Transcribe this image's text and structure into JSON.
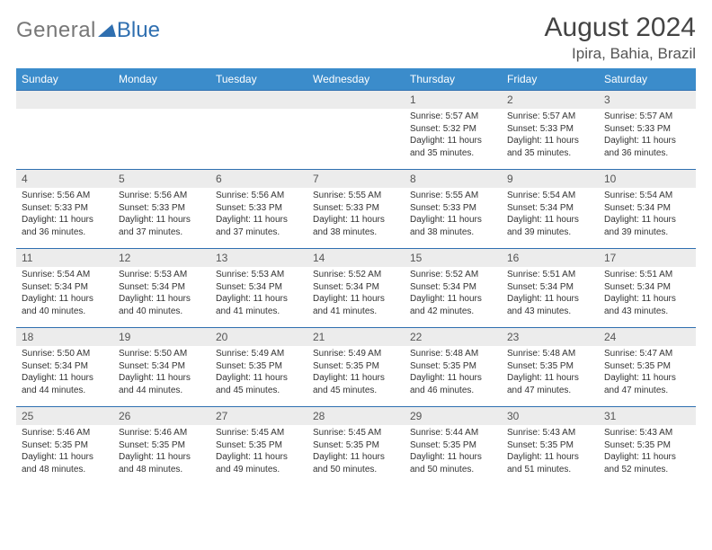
{
  "logo": {
    "word1": "General",
    "word2": "Blue"
  },
  "header": {
    "title": "August 2024",
    "location": "Ipira, Bahia, Brazil"
  },
  "weekdays": [
    "Sunday",
    "Monday",
    "Tuesday",
    "Wednesday",
    "Thursday",
    "Friday",
    "Saturday"
  ],
  "colors": {
    "header_bg": "#3b8ccb",
    "header_text": "#ffffff",
    "daynum_bg": "#ececec",
    "row_border": "#2f6fb0",
    "logo_gray": "#777777",
    "logo_blue": "#2f6fb0",
    "page_bg": "#ffffff"
  },
  "grid": [
    [
      {
        "empty": true
      },
      {
        "empty": true
      },
      {
        "empty": true
      },
      {
        "empty": true
      },
      {
        "day": "1",
        "sunrise": "5:57 AM",
        "sunset": "5:32 PM",
        "daylight": "11 hours and 35 minutes."
      },
      {
        "day": "2",
        "sunrise": "5:57 AM",
        "sunset": "5:33 PM",
        "daylight": "11 hours and 35 minutes."
      },
      {
        "day": "3",
        "sunrise": "5:57 AM",
        "sunset": "5:33 PM",
        "daylight": "11 hours and 36 minutes."
      }
    ],
    [
      {
        "day": "4",
        "sunrise": "5:56 AM",
        "sunset": "5:33 PM",
        "daylight": "11 hours and 36 minutes."
      },
      {
        "day": "5",
        "sunrise": "5:56 AM",
        "sunset": "5:33 PM",
        "daylight": "11 hours and 37 minutes."
      },
      {
        "day": "6",
        "sunrise": "5:56 AM",
        "sunset": "5:33 PM",
        "daylight": "11 hours and 37 minutes."
      },
      {
        "day": "7",
        "sunrise": "5:55 AM",
        "sunset": "5:33 PM",
        "daylight": "11 hours and 38 minutes."
      },
      {
        "day": "8",
        "sunrise": "5:55 AM",
        "sunset": "5:33 PM",
        "daylight": "11 hours and 38 minutes."
      },
      {
        "day": "9",
        "sunrise": "5:54 AM",
        "sunset": "5:34 PM",
        "daylight": "11 hours and 39 minutes."
      },
      {
        "day": "10",
        "sunrise": "5:54 AM",
        "sunset": "5:34 PM",
        "daylight": "11 hours and 39 minutes."
      }
    ],
    [
      {
        "day": "11",
        "sunrise": "5:54 AM",
        "sunset": "5:34 PM",
        "daylight": "11 hours and 40 minutes."
      },
      {
        "day": "12",
        "sunrise": "5:53 AM",
        "sunset": "5:34 PM",
        "daylight": "11 hours and 40 minutes."
      },
      {
        "day": "13",
        "sunrise": "5:53 AM",
        "sunset": "5:34 PM",
        "daylight": "11 hours and 41 minutes."
      },
      {
        "day": "14",
        "sunrise": "5:52 AM",
        "sunset": "5:34 PM",
        "daylight": "11 hours and 41 minutes."
      },
      {
        "day": "15",
        "sunrise": "5:52 AM",
        "sunset": "5:34 PM",
        "daylight": "11 hours and 42 minutes."
      },
      {
        "day": "16",
        "sunrise": "5:51 AM",
        "sunset": "5:34 PM",
        "daylight": "11 hours and 43 minutes."
      },
      {
        "day": "17",
        "sunrise": "5:51 AM",
        "sunset": "5:34 PM",
        "daylight": "11 hours and 43 minutes."
      }
    ],
    [
      {
        "day": "18",
        "sunrise": "5:50 AM",
        "sunset": "5:34 PM",
        "daylight": "11 hours and 44 minutes."
      },
      {
        "day": "19",
        "sunrise": "5:50 AM",
        "sunset": "5:34 PM",
        "daylight": "11 hours and 44 minutes."
      },
      {
        "day": "20",
        "sunrise": "5:49 AM",
        "sunset": "5:35 PM",
        "daylight": "11 hours and 45 minutes."
      },
      {
        "day": "21",
        "sunrise": "5:49 AM",
        "sunset": "5:35 PM",
        "daylight": "11 hours and 45 minutes."
      },
      {
        "day": "22",
        "sunrise": "5:48 AM",
        "sunset": "5:35 PM",
        "daylight": "11 hours and 46 minutes."
      },
      {
        "day": "23",
        "sunrise": "5:48 AM",
        "sunset": "5:35 PM",
        "daylight": "11 hours and 47 minutes."
      },
      {
        "day": "24",
        "sunrise": "5:47 AM",
        "sunset": "5:35 PM",
        "daylight": "11 hours and 47 minutes."
      }
    ],
    [
      {
        "day": "25",
        "sunrise": "5:46 AM",
        "sunset": "5:35 PM",
        "daylight": "11 hours and 48 minutes."
      },
      {
        "day": "26",
        "sunrise": "5:46 AM",
        "sunset": "5:35 PM",
        "daylight": "11 hours and 48 minutes."
      },
      {
        "day": "27",
        "sunrise": "5:45 AM",
        "sunset": "5:35 PM",
        "daylight": "11 hours and 49 minutes."
      },
      {
        "day": "28",
        "sunrise": "5:45 AM",
        "sunset": "5:35 PM",
        "daylight": "11 hours and 50 minutes."
      },
      {
        "day": "29",
        "sunrise": "5:44 AM",
        "sunset": "5:35 PM",
        "daylight": "11 hours and 50 minutes."
      },
      {
        "day": "30",
        "sunrise": "5:43 AM",
        "sunset": "5:35 PM",
        "daylight": "11 hours and 51 minutes."
      },
      {
        "day": "31",
        "sunrise": "5:43 AM",
        "sunset": "5:35 PM",
        "daylight": "11 hours and 52 minutes."
      }
    ]
  ],
  "labels": {
    "sunrise": "Sunrise:",
    "sunset": "Sunset:",
    "daylight": "Daylight:"
  }
}
